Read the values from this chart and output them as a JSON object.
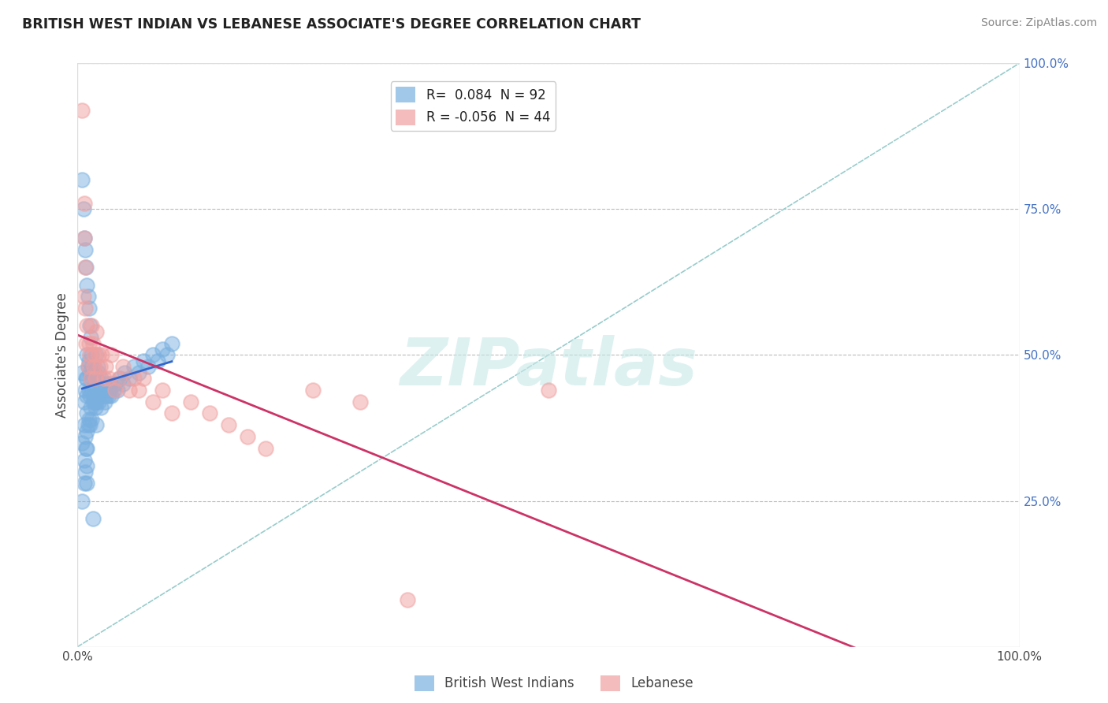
{
  "title": "BRITISH WEST INDIAN VS LEBANESE ASSOCIATE'S DEGREE CORRELATION CHART",
  "source": "Source: ZipAtlas.com",
  "ylabel": "Associate's Degree",
  "xlim": [
    0.0,
    1.0
  ],
  "ylim": [
    0.0,
    1.0
  ],
  "x_tick_labels": [
    "0.0%",
    "100.0%"
  ],
  "y_tick_labels": [
    "25.0%",
    "50.0%",
    "75.0%",
    "100.0%"
  ],
  "y_tick_values": [
    0.25,
    0.5,
    0.75,
    1.0
  ],
  "legend_labels": [
    "British West Indians",
    "Lebanese"
  ],
  "r_blue": 0.084,
  "n_blue": 92,
  "r_pink": -0.056,
  "n_pink": 44,
  "blue_color": "#7ab0e0",
  "pink_color": "#f0a0a0",
  "trend_blue_color": "#3366cc",
  "trend_pink_color": "#cc3366",
  "dashed_line_color": "#99cccc",
  "watermark": "ZIPatlas",
  "background_color": "#ffffff",
  "grid_color": "#bbbbbb",
  "blue_x": [
    0.005,
    0.005,
    0.005,
    0.007,
    0.007,
    0.007,
    0.007,
    0.008,
    0.008,
    0.008,
    0.009,
    0.009,
    0.01,
    0.01,
    0.01,
    0.01,
    0.01,
    0.01,
    0.01,
    0.01,
    0.011,
    0.011,
    0.012,
    0.012,
    0.012,
    0.013,
    0.013,
    0.013,
    0.014,
    0.014,
    0.015,
    0.015,
    0.015,
    0.016,
    0.016,
    0.017,
    0.017,
    0.018,
    0.018,
    0.019,
    0.019,
    0.02,
    0.02,
    0.02,
    0.02,
    0.021,
    0.021,
    0.022,
    0.022,
    0.023,
    0.024,
    0.025,
    0.025,
    0.026,
    0.027,
    0.028,
    0.029,
    0.03,
    0.031,
    0.032,
    0.033,
    0.034,
    0.035,
    0.036,
    0.038,
    0.04,
    0.042,
    0.045,
    0.048,
    0.05,
    0.055,
    0.06,
    0.065,
    0.07,
    0.075,
    0.08,
    0.085,
    0.09,
    0.095,
    0.1,
    0.005,
    0.006,
    0.007,
    0.008,
    0.009,
    0.01,
    0.011,
    0.012,
    0.013,
    0.014,
    0.015,
    0.016
  ],
  "blue_y": [
    0.47,
    0.35,
    0.25,
    0.42,
    0.38,
    0.32,
    0.28,
    0.44,
    0.36,
    0.3,
    0.46,
    0.34,
    0.5,
    0.46,
    0.43,
    0.4,
    0.37,
    0.34,
    0.31,
    0.28,
    0.48,
    0.38,
    0.49,
    0.44,
    0.39,
    0.47,
    0.43,
    0.38,
    0.46,
    0.41,
    0.48,
    0.44,
    0.39,
    0.47,
    0.42,
    0.48,
    0.43,
    0.47,
    0.42,
    0.46,
    0.41,
    0.5,
    0.46,
    0.42,
    0.38,
    0.48,
    0.43,
    0.47,
    0.42,
    0.45,
    0.44,
    0.46,
    0.41,
    0.44,
    0.43,
    0.45,
    0.42,
    0.44,
    0.43,
    0.45,
    0.43,
    0.44,
    0.45,
    0.43,
    0.44,
    0.45,
    0.44,
    0.46,
    0.45,
    0.47,
    0.46,
    0.48,
    0.47,
    0.49,
    0.48,
    0.5,
    0.49,
    0.51,
    0.5,
    0.52,
    0.8,
    0.75,
    0.7,
    0.68,
    0.65,
    0.62,
    0.6,
    0.58,
    0.55,
    0.53,
    0.5,
    0.22
  ],
  "pink_x": [
    0.005,
    0.006,
    0.007,
    0.008,
    0.009,
    0.01,
    0.011,
    0.012,
    0.013,
    0.014,
    0.015,
    0.016,
    0.017,
    0.018,
    0.019,
    0.02,
    0.022,
    0.024,
    0.026,
    0.028,
    0.03,
    0.033,
    0.036,
    0.04,
    0.044,
    0.048,
    0.055,
    0.06,
    0.065,
    0.07,
    0.08,
    0.09,
    0.1,
    0.12,
    0.14,
    0.16,
    0.18,
    0.2,
    0.25,
    0.3,
    0.007,
    0.008,
    0.35,
    0.5
  ],
  "pink_y": [
    0.92,
    0.6,
    0.7,
    0.58,
    0.52,
    0.55,
    0.48,
    0.52,
    0.5,
    0.46,
    0.55,
    0.52,
    0.48,
    0.5,
    0.46,
    0.54,
    0.5,
    0.48,
    0.5,
    0.46,
    0.48,
    0.46,
    0.5,
    0.44,
    0.46,
    0.48,
    0.44,
    0.46,
    0.44,
    0.46,
    0.42,
    0.44,
    0.4,
    0.42,
    0.4,
    0.38,
    0.36,
    0.34,
    0.44,
    0.42,
    0.76,
    0.65,
    0.08,
    0.44
  ]
}
